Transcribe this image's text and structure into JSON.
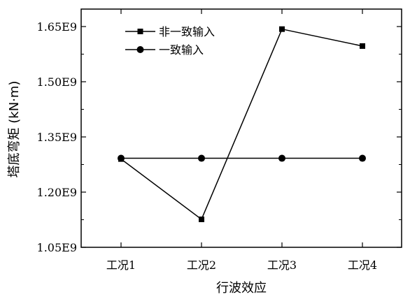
{
  "chart_data": {
    "type": "line",
    "xlabel": "行波效应",
    "ylabel": "塔底弯矩 (kN·m)",
    "categories": [
      "工况1",
      "工况2",
      "工况3",
      "工况4"
    ],
    "ylim": [
      1050000000.0,
      1700000000.0
    ],
    "yticks": [
      {
        "value": 1050000000.0,
        "label": "1.05E9"
      },
      {
        "value": 1200000000.0,
        "label": "1.20E9"
      },
      {
        "value": 1350000000.0,
        "label": "1.35E9"
      },
      {
        "value": 1500000000.0,
        "label": "1.50E9"
      },
      {
        "value": 1650000000.0,
        "label": "1.65E9"
      }
    ],
    "series": [
      {
        "name": "非一致输入",
        "marker": "square",
        "values": [
          1290000000.0,
          1126000000.0,
          1643000000.0,
          1597000000.0
        ]
      },
      {
        "name": "一致输入",
        "marker": "circle",
        "values": [
          1292000000.0,
          1292000000.0,
          1292000000.0,
          1292000000.0
        ]
      }
    ],
    "legend_position": "top-left",
    "grid": false
  }
}
